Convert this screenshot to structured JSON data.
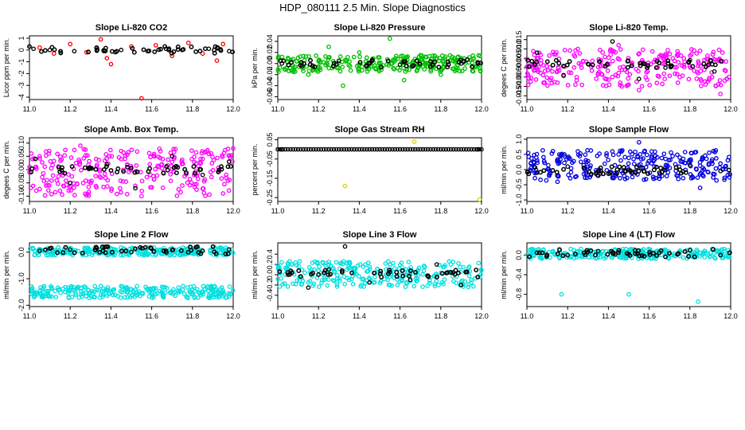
{
  "figure": {
    "title": "HDP_080111  2.5 Min. Slope Diagnostics"
  },
  "chart_data": [
    {
      "type": "scatter",
      "title": "Slope Li-820 CO2",
      "ylabel": "Licor ppm per min.",
      "xlim": [
        11.0,
        12.0
      ],
      "ylim": [
        -4.2,
        1.2
      ],
      "xticks": [
        "11.0",
        "11.2",
        "11.4",
        "11.6",
        "11.8",
        "12.0"
      ],
      "yticks": [
        "1",
        "0",
        "-1",
        "-2",
        "-3",
        "-4"
      ],
      "series": [
        {
          "name": "red",
          "color": "#ff0000",
          "x": [
            11.05,
            11.12,
            11.2,
            11.28,
            11.35,
            11.38,
            11.4,
            11.5,
            11.55,
            11.62,
            11.7,
            11.78,
            11.85,
            11.92,
            11.95
          ],
          "y": [
            0.2,
            -0.3,
            0.5,
            -0.2,
            0.9,
            -0.7,
            -1.2,
            0.3,
            -4.1,
            0.4,
            -0.5,
            0.6,
            -0.3,
            -0.9,
            0.5
          ]
        },
        {
          "name": "black",
          "color": "#000000",
          "x": [
            11.02,
            11.1,
            11.22,
            11.33,
            11.45,
            11.58,
            11.67,
            11.75,
            11.88,
            11.98
          ],
          "y": [
            0.1,
            0.0,
            -0.1,
            0.2,
            0.0,
            -0.1,
            0.1,
            0.0,
            0.1,
            -0.1
          ]
        }
      ]
    },
    {
      "type": "scatter",
      "title": "Slope Li-820 Pressure",
      "ylabel": "kPa per min.",
      "xlim": [
        11.0,
        12.0
      ],
      "ylim": [
        -0.065,
        0.05
      ],
      "xticks": [
        "11.0",
        "11.2",
        "11.4",
        "11.6",
        "11.8",
        "12.0"
      ],
      "yticks": [
        "0.04",
        "0.02",
        "0.00",
        "-0.02",
        "-0.04",
        "-0.06"
      ],
      "series": [
        {
          "name": "green",
          "color": "#00c000",
          "x": [
            11.05,
            11.15,
            11.25,
            11.32,
            11.4,
            11.48,
            11.55,
            11.62,
            11.7,
            11.8,
            11.9,
            11.97
          ],
          "y": [
            0.01,
            -0.02,
            0.03,
            -0.04,
            0.02,
            -0.01,
            0.045,
            -0.03,
            0.015,
            -0.02,
            0.01,
            -0.005
          ],
          "spread": 0.03
        },
        {
          "name": "black",
          "color": "#000000",
          "x": [
            11.02,
            11.12,
            11.3,
            11.45,
            11.6,
            11.75,
            11.9
          ],
          "y": [
            0.0,
            -0.005,
            0.005,
            0.0,
            -0.002,
            0.004,
            0.0
          ]
        }
      ]
    },
    {
      "type": "scatter",
      "title": "Slope Li-820 Temp.",
      "ylabel": "degees C per min.",
      "xlim": [
        11.0,
        12.0
      ],
      "ylim": [
        -0.017,
        0.017
      ],
      "xticks": [
        "11.0",
        "11.2",
        "11.4",
        "11.6",
        "11.8",
        "12.0"
      ],
      "yticks": [
        "0.015",
        "0.010",
        "0.005",
        "0.000",
        "-0.005",
        "-0.010",
        "-0.015"
      ],
      "series": [
        {
          "name": "magenta",
          "color": "#ff00ff",
          "x": [
            11.05,
            11.15,
            11.25,
            11.35,
            11.45,
            11.55,
            11.65,
            11.75,
            11.85,
            11.95
          ],
          "y": [
            0.005,
            -0.008,
            0.01,
            -0.003,
            0.012,
            -0.012,
            0.006,
            -0.005,
            0.009,
            -0.014
          ],
          "spread": 0.02
        },
        {
          "name": "black",
          "color": "#000000",
          "x": [
            11.05,
            11.18,
            11.3,
            11.42,
            11.55,
            11.68,
            11.8,
            11.92
          ],
          "y": [
            0.008,
            -0.004,
            0.002,
            0.014,
            -0.006,
            0.0,
            0.004,
            -0.002
          ]
        }
      ]
    },
    {
      "type": "scatter",
      "title": "Slope Amb. Box Temp.",
      "ylabel": "degees C per min.",
      "xlim": [
        11.0,
        12.0
      ],
      "ylim": [
        -0.12,
        0.12
      ],
      "xticks": [
        "11.0",
        "11.2",
        "11.4",
        "11.6",
        "11.8",
        "12.0"
      ],
      "yticks": [
        "0.10",
        "0.05",
        "0.00",
        "-0.05",
        "-0.10"
      ],
      "series": [
        {
          "name": "magenta",
          "color": "#ff00ff",
          "x": [
            11.05,
            11.15,
            11.25,
            11.35,
            11.45,
            11.55,
            11.65,
            11.75,
            11.85,
            11.95
          ],
          "y": [
            0.05,
            -0.08,
            0.09,
            -0.03,
            0.07,
            -0.1,
            0.02,
            -0.06,
            0.04,
            -0.09
          ],
          "spread": 0.18
        },
        {
          "name": "black",
          "color": "#000000",
          "x": [
            11.03,
            11.2,
            11.38,
            11.52,
            11.7,
            11.85,
            11.98
          ],
          "y": [
            0.04,
            -0.05,
            0.02,
            -0.07,
            0.05,
            -0.02,
            0.03
          ]
        }
      ]
    },
    {
      "type": "scatter",
      "title": "Slope Gas Stream RH",
      "ylabel": "percent per min.",
      "xlim": [
        11.0,
        12.0
      ],
      "ylim": [
        -0.27,
        0.06
      ],
      "xticks": [
        "11.0",
        "11.2",
        "11.4",
        "11.6",
        "11.8",
        "12.0"
      ],
      "yticks": [
        "0.05",
        "-0.05",
        "-0.15",
        "-0.25"
      ],
      "series": [
        {
          "name": "yellow",
          "color": "#e0d000",
          "x": [
            11.0,
            11.33,
            11.67,
            11.99
          ],
          "y": [
            0.0,
            -0.19,
            0.04,
            -0.26
          ]
        },
        {
          "name": "black",
          "color": "#000000",
          "x": [
            11.02,
            11.98
          ],
          "y": [
            0.0,
            0.0
          ]
        }
      ]
    },
    {
      "type": "scatter",
      "title": "Slope Sample Flow",
      "ylabel": "ml/min per min.",
      "xlim": [
        11.0,
        12.0
      ],
      "ylim": [
        -1.05,
        1.05
      ],
      "xticks": [
        "11.0",
        "11.2",
        "11.4",
        "11.6",
        "11.8",
        "12.0"
      ],
      "yticks": [
        "1.0",
        "0.5",
        "0.0",
        "-0.5",
        "-1.0"
      ],
      "series": [
        {
          "name": "blue",
          "color": "#0000e0",
          "x": [
            11.05,
            11.15,
            11.25,
            11.35,
            11.45,
            11.55,
            11.65,
            11.75,
            11.85,
            11.95
          ],
          "y": [
            0.3,
            -0.4,
            0.6,
            -0.2,
            0.5,
            0.9,
            -0.3,
            0.4,
            -0.6,
            0.2
          ],
          "spread": 1.0
        },
        {
          "name": "black",
          "color": "#000000",
          "x": [
            11.05,
            11.2,
            11.35,
            11.5,
            11.65,
            11.8,
            11.95
          ],
          "y": [
            -0.1,
            0.1,
            -0.2,
            0.0,
            -0.1,
            0.15,
            -0.05
          ]
        }
      ]
    },
    {
      "type": "scatter",
      "title": "Slope Line 2 Flow",
      "ylabel": "ml/min per min.",
      "xlim": [
        11.0,
        12.0
      ],
      "ylim": [
        -2.05,
        0.35
      ],
      "xticks": [
        "11.0",
        "11.2",
        "11.4",
        "11.6",
        "11.8",
        "12.0"
      ],
      "yticks": [
        "0.0",
        "-1.0",
        "-2.0"
      ],
      "series": [
        {
          "name": "cyan-upper",
          "color": "#00e0e0",
          "x": [
            11.05,
            11.2,
            11.35,
            11.5,
            11.65,
            11.8,
            11.95
          ],
          "y": [
            0.05,
            -0.05,
            0.1,
            0.0,
            0.05,
            -0.05,
            0.1
          ],
          "spread": 0.3
        },
        {
          "name": "cyan-lower",
          "color": "#00e0e0",
          "x": [
            11.05,
            11.2,
            11.35,
            11.5,
            11.65,
            11.8,
            11.95
          ],
          "y": [
            -1.55,
            -1.45,
            -1.6,
            -1.4,
            -1.5,
            -1.55,
            -1.45
          ],
          "spread": 0.45
        },
        {
          "name": "black",
          "color": "#000000",
          "x": [
            11.05,
            11.2,
            11.33,
            11.5,
            11.67,
            11.85,
            11.98
          ],
          "y": [
            0.05,
            0.1,
            0.15,
            0.0,
            0.05,
            0.05,
            0.1
          ]
        }
      ]
    },
    {
      "type": "scatter",
      "title": "Slope Line 3 Flow",
      "ylabel": "ml/min per min.",
      "xlim": [
        11.0,
        12.0
      ],
      "ylim": [
        -0.62,
        0.62
      ],
      "xticks": [
        "11.0",
        "11.2",
        "11.4",
        "11.6",
        "11.8",
        "12.0"
      ],
      "yticks": [
        "0.4",
        "0.2",
        "0.0",
        "-0.2",
        "-0.4"
      ],
      "series": [
        {
          "name": "cyan",
          "color": "#00e0e0",
          "x": [
            11.05,
            11.15,
            11.25,
            11.35,
            11.45,
            11.55,
            11.65,
            11.75,
            11.85,
            11.95
          ],
          "y": [
            0.1,
            -0.15,
            0.2,
            -0.1,
            0.15,
            -0.2,
            0.05,
            -0.05,
            0.2,
            -0.1
          ],
          "spread": 0.5
        },
        {
          "name": "black",
          "color": "#000000",
          "x": [
            11.05,
            11.15,
            11.25,
            11.33,
            11.45,
            11.55,
            11.65,
            11.78,
            11.9
          ],
          "y": [
            0.0,
            -0.25,
            0.1,
            0.55,
            -0.15,
            0.05,
            -0.1,
            0.2,
            -0.2
          ]
        }
      ]
    },
    {
      "type": "scatter",
      "title": "Slope Line 4 (LT) Flow",
      "ylabel": "ml/min per min.",
      "xlim": [
        11.0,
        12.0
      ],
      "ylim": [
        -1.05,
        0.25
      ],
      "xticks": [
        "11.0",
        "11.2",
        "11.4",
        "11.6",
        "11.8",
        "12.0"
      ],
      "yticks": [
        "0.0",
        "-0.4",
        "-0.8"
      ],
      "series": [
        {
          "name": "cyan",
          "color": "#00e0e0",
          "x": [
            11.05,
            11.15,
            11.25,
            11.35,
            11.45,
            11.55,
            11.65,
            11.75,
            11.85,
            11.95,
            11.17,
            11.5,
            11.84
          ],
          "y": [
            0.05,
            0.0,
            0.08,
            -0.02,
            0.05,
            0.0,
            0.08,
            -0.02,
            0.05,
            0.0,
            -0.8,
            -0.8,
            -0.95
          ],
          "spread": 0.2
        },
        {
          "name": "black",
          "color": "#000000",
          "x": [
            11.05,
            11.2,
            11.35,
            11.5,
            11.65,
            11.8,
            11.95
          ],
          "y": [
            0.05,
            0.0,
            0.08,
            0.02,
            0.05,
            0.1,
            0.0
          ]
        }
      ]
    }
  ]
}
